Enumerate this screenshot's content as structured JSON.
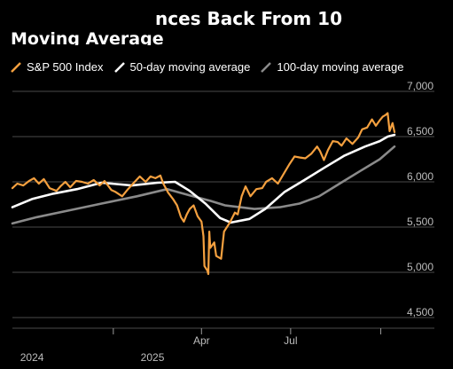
{
  "header": {
    "title_line1": "nces Back From 10",
    "title_line2": "Moving Average"
  },
  "colors": {
    "sp500": "#f4a03f",
    "ma50": "#ffffff",
    "ma100": "#8a8a8a",
    "grid": "#4a4a4a",
    "background": "#000000"
  },
  "chart_data": {
    "type": "line",
    "title": "",
    "xlabel": "",
    "ylabel": "",
    "ylim": [
      4500,
      7000
    ],
    "yticks": [
      {
        "value": 4500,
        "label": "4,500"
      },
      {
        "value": 5000,
        "label": "5,000"
      },
      {
        "value": 5500,
        "label": "5,500"
      },
      {
        "value": 6000,
        "label": "6,000"
      },
      {
        "value": 6500,
        "label": "6,500"
      },
      {
        "value": 7000,
        "label": "7,000"
      }
    ],
    "xlim": [
      "2024-09-20",
      "2025-10-15"
    ],
    "xticks": [
      {
        "date": "2025-01-01",
        "label": ""
      },
      {
        "date": "2025-04-01",
        "label": "Apr"
      },
      {
        "date": "2025-07-01",
        "label": "Jul"
      },
      {
        "date": "2025-10-01",
        "label": ""
      }
    ],
    "year_labels": [
      {
        "date": "2024-10-10",
        "label": "2024"
      },
      {
        "date": "2025-02-10",
        "label": "2025"
      }
    ],
    "legend_position": "top",
    "grid": true,
    "series": [
      {
        "name": "S&P 500 Index",
        "color_key": "sp500",
        "points": [
          [
            "2024-09-20",
            5930
          ],
          [
            "2024-09-25",
            5980
          ],
          [
            "2024-10-01",
            5960
          ],
          [
            "2024-10-07",
            6010
          ],
          [
            "2024-10-12",
            6040
          ],
          [
            "2024-10-17",
            5980
          ],
          [
            "2024-10-22",
            6030
          ],
          [
            "2024-10-28",
            5930
          ],
          [
            "2024-11-04",
            5900
          ],
          [
            "2024-11-08",
            5950
          ],
          [
            "2024-11-13",
            6000
          ],
          [
            "2024-11-18",
            5940
          ],
          [
            "2024-11-24",
            6010
          ],
          [
            "2024-11-30",
            6000
          ],
          [
            "2024-12-06",
            5980
          ],
          [
            "2024-12-12",
            6020
          ],
          [
            "2024-12-18",
            5960
          ],
          [
            "2024-12-23",
            6010
          ],
          [
            "2024-12-30",
            5910
          ],
          [
            "2025-01-03",
            5890
          ],
          [
            "2025-01-10",
            5840
          ],
          [
            "2025-01-16",
            5920
          ],
          [
            "2025-01-22",
            5990
          ],
          [
            "2025-01-28",
            6060
          ],
          [
            "2025-02-03",
            6000
          ],
          [
            "2025-02-08",
            6060
          ],
          [
            "2025-02-13",
            6040
          ],
          [
            "2025-02-18",
            6070
          ],
          [
            "2025-02-21",
            5980
          ],
          [
            "2025-02-26",
            5880
          ],
          [
            "2025-03-03",
            5810
          ],
          [
            "2025-03-07",
            5740
          ],
          [
            "2025-03-11",
            5610
          ],
          [
            "2025-03-14",
            5560
          ],
          [
            "2025-03-17",
            5640
          ],
          [
            "2025-03-20",
            5700
          ],
          [
            "2025-03-24",
            5740
          ],
          [
            "2025-03-28",
            5620
          ],
          [
            "2025-04-01",
            5560
          ],
          [
            "2025-04-03",
            5400
          ],
          [
            "2025-04-04",
            5070
          ],
          [
            "2025-04-07",
            5020
          ],
          [
            "2025-04-08",
            4980
          ],
          [
            "2025-04-09",
            5450
          ],
          [
            "2025-04-10",
            5270
          ],
          [
            "2025-04-14",
            5330
          ],
          [
            "2025-04-16",
            5180
          ],
          [
            "2025-04-21",
            5150
          ],
          [
            "2025-04-24",
            5450
          ],
          [
            "2025-04-30",
            5550
          ],
          [
            "2025-05-05",
            5660
          ],
          [
            "2025-05-08",
            5640
          ],
          [
            "2025-05-12",
            5840
          ],
          [
            "2025-05-16",
            5950
          ],
          [
            "2025-05-21",
            5840
          ],
          [
            "2025-05-27",
            5920
          ],
          [
            "2025-06-02",
            5930
          ],
          [
            "2025-06-06",
            6000
          ],
          [
            "2025-06-12",
            6040
          ],
          [
            "2025-06-18",
            5980
          ],
          [
            "2025-06-24",
            6090
          ],
          [
            "2025-06-30",
            6200
          ],
          [
            "2025-07-05",
            6280
          ],
          [
            "2025-07-10",
            6270
          ],
          [
            "2025-07-16",
            6260
          ],
          [
            "2025-07-22",
            6310
          ],
          [
            "2025-07-28",
            6390
          ],
          [
            "2025-07-31",
            6340
          ],
          [
            "2025-08-04",
            6240
          ],
          [
            "2025-08-08",
            6350
          ],
          [
            "2025-08-13",
            6450
          ],
          [
            "2025-08-18",
            6440
          ],
          [
            "2025-08-22",
            6400
          ],
          [
            "2025-08-27",
            6480
          ],
          [
            "2025-09-02",
            6420
          ],
          [
            "2025-09-08",
            6490
          ],
          [
            "2025-09-12",
            6580
          ],
          [
            "2025-09-17",
            6600
          ],
          [
            "2025-09-22",
            6690
          ],
          [
            "2025-09-26",
            6620
          ],
          [
            "2025-09-30",
            6680
          ],
          [
            "2025-10-03",
            6720
          ],
          [
            "2025-10-06",
            6740
          ],
          [
            "2025-10-08",
            6760
          ],
          [
            "2025-10-10",
            6560
          ],
          [
            "2025-10-13",
            6650
          ],
          [
            "2025-10-15",
            6550
          ]
        ]
      },
      {
        "name": "50-day moving average",
        "color_key": "ma50",
        "points": [
          [
            "2024-09-20",
            5720
          ],
          [
            "2024-10-10",
            5810
          ],
          [
            "2024-11-01",
            5870
          ],
          [
            "2024-11-25",
            5920
          ],
          [
            "2024-12-20",
            5990
          ],
          [
            "2025-01-20",
            5960
          ],
          [
            "2025-02-15",
            5990
          ],
          [
            "2025-03-05",
            6000
          ],
          [
            "2025-03-20",
            5900
          ],
          [
            "2025-04-05",
            5760
          ],
          [
            "2025-04-20",
            5600
          ],
          [
            "2025-05-01",
            5550
          ],
          [
            "2025-05-20",
            5590
          ],
          [
            "2025-06-05",
            5700
          ],
          [
            "2025-06-25",
            5890
          ],
          [
            "2025-07-15",
            6020
          ],
          [
            "2025-08-05",
            6160
          ],
          [
            "2025-08-25",
            6290
          ],
          [
            "2025-09-15",
            6390
          ],
          [
            "2025-09-30",
            6450
          ],
          [
            "2025-10-08",
            6500
          ],
          [
            "2025-10-15",
            6520
          ]
        ]
      },
      {
        "name": "100-day moving average",
        "color_key": "ma100",
        "points": [
          [
            "2024-09-20",
            5540
          ],
          [
            "2024-10-15",
            5610
          ],
          [
            "2024-11-15",
            5680
          ],
          [
            "2024-12-20",
            5760
          ],
          [
            "2025-01-25",
            5840
          ],
          [
            "2025-02-25",
            5920
          ],
          [
            "2025-03-20",
            5850
          ],
          [
            "2025-04-10",
            5790
          ],
          [
            "2025-04-25",
            5740
          ],
          [
            "2025-05-25",
            5700
          ],
          [
            "2025-06-20",
            5720
          ],
          [
            "2025-07-10",
            5760
          ],
          [
            "2025-07-30",
            5840
          ],
          [
            "2025-08-20",
            5980
          ],
          [
            "2025-09-10",
            6120
          ],
          [
            "2025-09-30",
            6250
          ],
          [
            "2025-10-15",
            6390
          ]
        ]
      }
    ]
  },
  "legend": [
    {
      "label": "S&P 500 Index",
      "color_key": "sp500"
    },
    {
      "label": "50-day moving average",
      "color_key": "ma50"
    },
    {
      "label": "100-day moving average",
      "color_key": "ma100"
    }
  ]
}
